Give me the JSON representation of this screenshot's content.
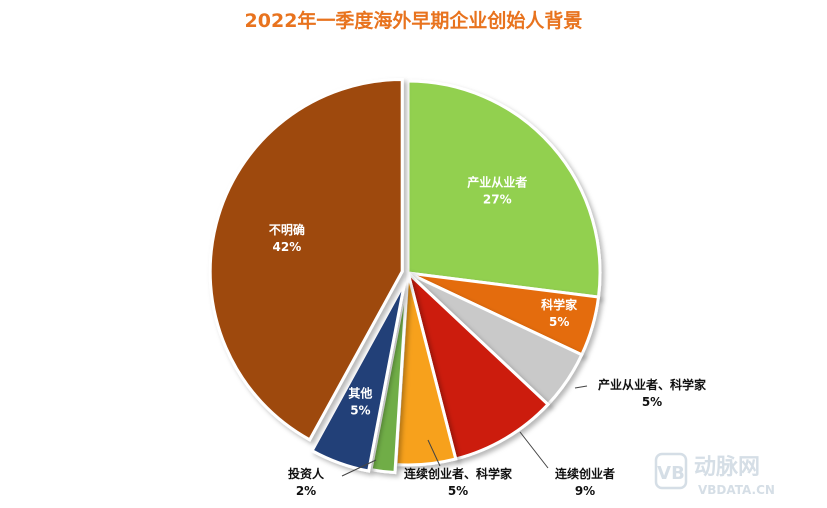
{
  "chart_data": {
    "type": "pie",
    "title": "2022年一季度海外早期企业创始人背景",
    "series": [
      {
        "name": "产业从业者",
        "value": 27,
        "label": "27%",
        "color": "#92D050"
      },
      {
        "name": "科学家",
        "value": 5,
        "label": "5%",
        "color": "#E46C0A"
      },
      {
        "name": "产业从业者、科学家",
        "value": 5,
        "label": "5%",
        "color": "#C9C9C9"
      },
      {
        "name": "连续创业者",
        "value": 9,
        "label": "9%",
        "color": "#CC1A0A"
      },
      {
        "name": "连续创业者、科学家",
        "value": 5,
        "label": "5%",
        "color": "#F7A11E"
      },
      {
        "name": "投资人",
        "value": 2,
        "label": "2%",
        "color": "#70AD47"
      },
      {
        "name": "其他",
        "value": 5,
        "label": "5%",
        "color": "#243F78"
      },
      {
        "name": "不明确",
        "value": 42,
        "label": "42%",
        "color": "#9E480E"
      }
    ]
  },
  "colors": {
    "title": "#E8731E"
  },
  "watermark": {
    "brand": "动脉网",
    "url": "VBDATA.CN"
  }
}
